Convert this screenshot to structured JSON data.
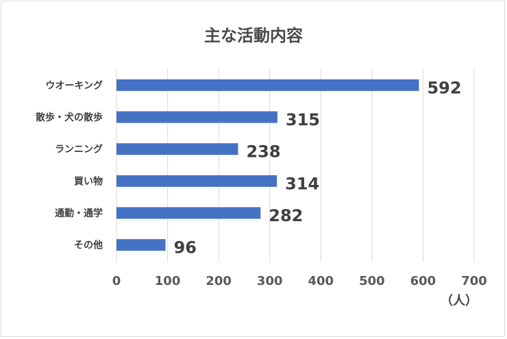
{
  "chart_data": {
    "type": "bar",
    "orientation": "horizontal",
    "title": "主な活動内容",
    "categories": [
      "ウオーキング",
      "散歩・犬の散歩",
      "ランニング",
      "買い物",
      "通勤・通学",
      "その他"
    ],
    "values": [
      592,
      315,
      238,
      314,
      282,
      96
    ],
    "xlim": [
      0,
      700
    ],
    "xticks": [
      0,
      100,
      200,
      300,
      400,
      500,
      600,
      700
    ],
    "xunit": "（人）",
    "grid": true,
    "legend": "none",
    "bar_color": "#4472c4"
  }
}
